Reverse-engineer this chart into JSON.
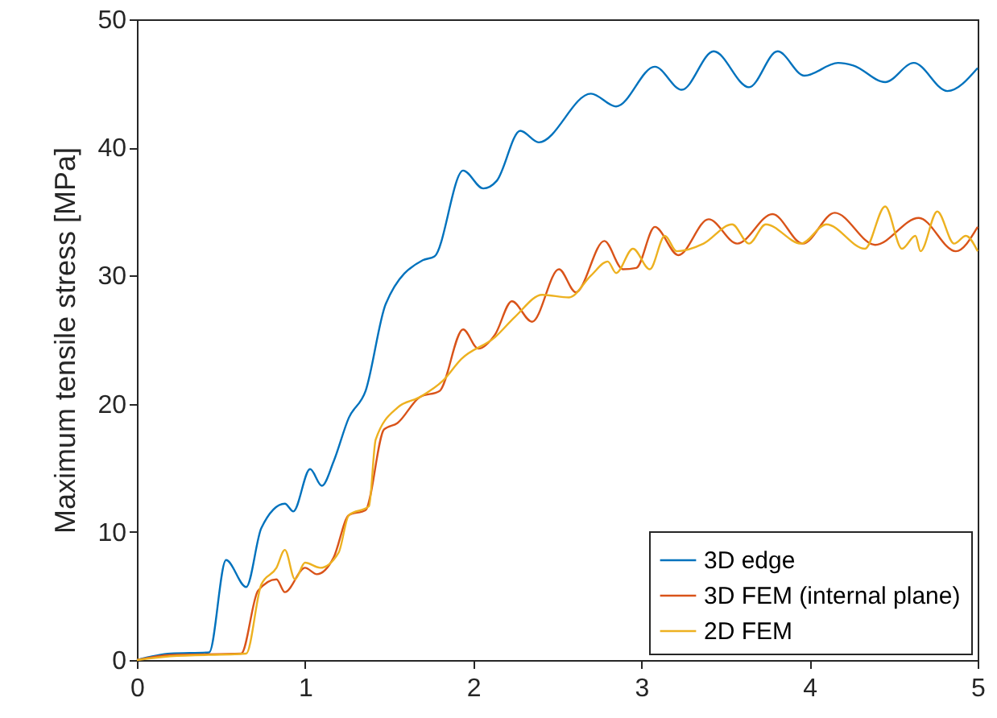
{
  "chart_data": {
    "type": "line",
    "ylabel": "Maximum tensile stress [MPa]",
    "xlim": [
      0,
      5
    ],
    "ylim": [
      0,
      50
    ],
    "xticks": [
      0,
      1,
      2,
      3,
      4,
      5
    ],
    "yticks": [
      0,
      10,
      20,
      30,
      40,
      50
    ],
    "grid": false,
    "legend": "bottom right",
    "series": [
      {
        "name": "3D edge",
        "color": "#0072bd",
        "x": [
          0,
          0.2,
          0.43,
          0.53,
          0.65,
          0.74,
          0.88,
          0.93,
          1.03,
          1.1,
          1.17,
          1.26,
          1.36,
          1.48,
          1.7,
          1.77,
          1.94,
          2.06,
          2.14,
          2.28,
          2.39,
          2.7,
          2.85,
          3.08,
          3.24,
          3.43,
          3.64,
          3.81,
          3.97,
          4.17,
          4.26,
          4.45,
          4.62,
          4.82,
          5.0
        ],
        "values": [
          0,
          0.5,
          0.6,
          7.8,
          5.7,
          10.3,
          12.2,
          11.6,
          14.9,
          13.6,
          15.5,
          18.9,
          21,
          27.8,
          31.2,
          31.5,
          38.2,
          36.8,
          37.4,
          41.3,
          40.4,
          44.2,
          43.2,
          46.3,
          44.5,
          47.5,
          44.7,
          47.5,
          45.6,
          46.6,
          46.4,
          45.1,
          46.6,
          44.4,
          46.2
        ]
      },
      {
        "name": "3D FEM (internal plane)",
        "color": "#d95319",
        "x": [
          0,
          0.2,
          0.62,
          0.72,
          0.83,
          0.88,
          1.0,
          1.07,
          1.17,
          1.26,
          1.36,
          1.47,
          1.55,
          1.68,
          1.8,
          1.94,
          2.03,
          2.13,
          2.23,
          2.35,
          2.51,
          2.61,
          2.78,
          2.89,
          2.97,
          3.08,
          3.22,
          3.4,
          3.57,
          3.78,
          3.96,
          4.15,
          4.39,
          4.65,
          4.87,
          5.0
        ],
        "values": [
          0,
          0.4,
          0.5,
          5.4,
          6.3,
          5.3,
          7.2,
          6.7,
          8,
          11.3,
          11.7,
          18,
          18.5,
          20.5,
          21,
          25.8,
          24.3,
          25.4,
          28,
          26.4,
          30.5,
          28.7,
          32.7,
          30.5,
          30.6,
          33.8,
          31.6,
          34.4,
          32.5,
          34.8,
          32.5,
          34.9,
          32.4,
          34.5,
          31.9,
          33.8
        ]
      },
      {
        "name": "2D FEM",
        "color": "#edb120",
        "x": [
          0,
          0.2,
          0.65,
          0.74,
          0.83,
          0.88,
          0.94,
          1.0,
          1.09,
          1.2,
          1.26,
          1.38,
          1.42,
          1.55,
          1.68,
          1.82,
          1.93,
          2.13,
          2.25,
          2.41,
          2.57,
          2.7,
          2.8,
          2.85,
          2.95,
          3.05,
          3.14,
          3.21,
          3.37,
          3.54,
          3.64,
          3.74,
          3.95,
          4.1,
          4.33,
          4.45,
          4.55,
          4.63,
          4.66,
          4.76,
          4.86,
          4.93,
          5.0
        ],
        "values": [
          0,
          0.3,
          0.5,
          5.9,
          7.2,
          8.6,
          6.3,
          7.6,
          7.2,
          8.4,
          11.3,
          12,
          17.2,
          19.7,
          20.5,
          21.8,
          23.5,
          25.2,
          26.8,
          28.5,
          28.3,
          30,
          31.1,
          30.2,
          32.1,
          30.5,
          33.1,
          31.9,
          32.5,
          34,
          32.5,
          34,
          32.5,
          34,
          32.1,
          35.4,
          32.1,
          33.1,
          31.9,
          35,
          32.5,
          33.1,
          31.9
        ]
      }
    ]
  }
}
